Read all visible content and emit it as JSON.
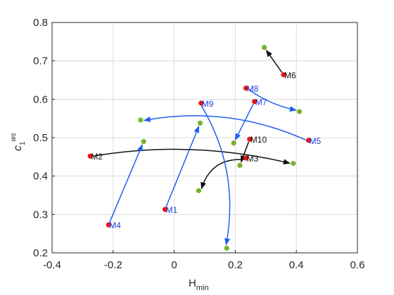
{
  "chart_data": {
    "type": "scatter",
    "xlabel": "H",
    "xlabel_sub": "min",
    "ylabel": "c",
    "ylabel_sub": "1",
    "ylabel_sup": "ws",
    "xlim": [
      -0.4,
      0.6
    ],
    "ylim": [
      0.2,
      0.8
    ],
    "xticks": [
      "-0.4",
      "-0.2",
      "0",
      "0.2",
      "0.4",
      "0.6"
    ],
    "yticks": [
      "0.2",
      "0.3",
      "0.4",
      "0.5",
      "0.6",
      "0.7",
      "0.8"
    ],
    "grid": true,
    "colors": {
      "start": "#ee1111",
      "end": "#77b32a",
      "arrow_blue": "#1f5ef0",
      "arrow_black": "#111111",
      "label_blue": "#1f3fd8",
      "label_black": "#111111"
    },
    "points": [
      {
        "name": "M1",
        "x": -0.03,
        "y": 0.313,
        "end_x": 0.085,
        "end_y": 0.538,
        "color": "blue"
      },
      {
        "name": "M2",
        "x": -0.275,
        "y": 0.452,
        "end_x": 0.39,
        "end_y": 0.433,
        "color": "black"
      },
      {
        "name": "M3",
        "x": 0.235,
        "y": 0.447,
        "end_x": 0.08,
        "end_y": 0.362,
        "color": "black"
      },
      {
        "name": "M4",
        "x": -0.215,
        "y": 0.273,
        "end_x": -0.1,
        "end_y": 0.49,
        "color": "blue"
      },
      {
        "name": "M5",
        "x": 0.44,
        "y": 0.493,
        "end_x": -0.11,
        "end_y": 0.546,
        "color": "blue"
      },
      {
        "name": "M6",
        "x": 0.358,
        "y": 0.664,
        "end_x": 0.295,
        "end_y": 0.735,
        "color": "black"
      },
      {
        "name": "M7",
        "x": 0.263,
        "y": 0.594,
        "end_x": 0.195,
        "end_y": 0.486,
        "color": "blue"
      },
      {
        "name": "M8",
        "x": 0.235,
        "y": 0.629,
        "end_x": 0.41,
        "end_y": 0.568,
        "color": "blue"
      },
      {
        "name": "M9",
        "x": 0.088,
        "y": 0.59,
        "end_x": 0.172,
        "end_y": 0.212,
        "color": "blue"
      },
      {
        "name": "M10",
        "x": 0.247,
        "y": 0.496,
        "end_x": 0.215,
        "end_y": 0.428,
        "color": "black"
      }
    ]
  }
}
